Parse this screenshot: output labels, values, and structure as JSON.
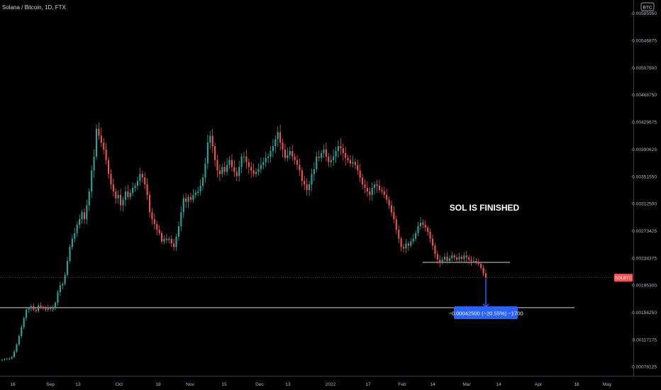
{
  "header": {
    "title": "Solana / Bitcoin, 1D, FTX"
  },
  "currency_badge": "BTC",
  "symbol_badge": "SOLBTC",
  "annotation": "SOL IS FINISHED",
  "measure_label": "−0.00042500 (−20.55%) −1700",
  "colors": {
    "background": "#000000",
    "up": "#26a69a",
    "down": "#ef5350",
    "price_line": "#ef5350",
    "measure": "#2962ff",
    "axis_text": "#b2b5be"
  },
  "chart_data": {
    "type": "candlestick",
    "title": "Solana / Bitcoin, 1D, FTX",
    "y_ticks": [
      "0.00585950",
      "0.00546875",
      "0.00507800",
      "0.00468750",
      "0.00429675",
      "0.00390625",
      "0.00351550",
      "0.00312500",
      "0.00273425",
      "0.00234375",
      "0.00195300",
      "0.00156250",
      "0.00117175",
      "0.00078125"
    ],
    "x_ticks": [
      "16",
      "Sep",
      "13",
      "Oct",
      "18",
      "Nov",
      "15",
      "Dec",
      "13",
      "2022",
      "17",
      "Feb",
      "14",
      "Mar",
      "14",
      "Apr",
      "18",
      "May"
    ],
    "ylim": [
      0.00065,
      0.00605
    ],
    "last_price": 0.00206,
    "support_level": 0.00228,
    "target_level": 0.00163,
    "measure": {
      "from": 0.00206,
      "to": 0.00163,
      "change": "−0.00042500",
      "percent": "−20.55%",
      "ticks": "−1700"
    },
    "close_series": [
      0.00088,
      0.00089,
      0.00089,
      0.0009,
      0.00092,
      0.001,
      0.0011,
      0.00122,
      0.00135,
      0.00148,
      0.0016,
      0.00162,
      0.00165,
      0.0016,
      0.00158,
      0.00166,
      0.00164,
      0.00162,
      0.0016,
      0.00163,
      0.00161,
      0.00163,
      0.0017,
      0.00185,
      0.00195,
      0.00197,
      0.0021,
      0.0023,
      0.0025,
      0.00262,
      0.0027,
      0.00282,
      0.0029,
      0.003,
      0.0029,
      0.0031,
      0.0033,
      0.0036,
      0.0038,
      0.0042,
      0.0041,
      0.004,
      0.0039,
      0.00375,
      0.00355,
      0.0034,
      0.0033,
      0.0032,
      0.00325,
      0.0031,
      0.00318,
      0.0033,
      0.00322,
      0.00328,
      0.00335,
      0.00338,
      0.00345,
      0.00355,
      0.0035,
      0.0034,
      0.00325,
      0.003,
      0.0029,
      0.00283,
      0.00275,
      0.0027,
      0.00258,
      0.00262,
      0.0026,
      0.00262,
      0.00255,
      0.0025,
      0.00265,
      0.0028,
      0.003,
      0.0032,
      0.00315,
      0.00322,
      0.00318,
      0.00325,
      0.00328,
      0.0033,
      0.00338,
      0.0035,
      0.0037,
      0.004,
      0.0041,
      0.00395,
      0.00375,
      0.0036,
      0.00355,
      0.00365,
      0.00358,
      0.00368,
      0.00375,
      0.00365,
      0.00358,
      0.00352,
      0.00365,
      0.0038,
      0.0038,
      0.00372,
      0.00365,
      0.0036,
      0.00355,
      0.00358,
      0.00362,
      0.00368,
      0.00372,
      0.00378,
      0.0038,
      0.00388,
      0.00395,
      0.00405,
      0.00415,
      0.004,
      0.0039,
      0.00378,
      0.00382,
      0.00388,
      0.0038,
      0.00375,
      0.00368,
      0.0036,
      0.00345,
      0.0034,
      0.00332,
      0.0034,
      0.00355,
      0.00362,
      0.0038,
      0.00378,
      0.00385,
      0.0039,
      0.0038,
      0.00372,
      0.00375,
      0.0038,
      0.00388,
      0.00395,
      0.00392,
      0.00385,
      0.00378,
      0.00375,
      0.0037,
      0.00372,
      0.00368,
      0.0036,
      0.0035,
      0.0034,
      0.00335,
      0.0033,
      0.00325,
      0.00335,
      0.0034,
      0.00338,
      0.00332,
      0.0033,
      0.00325,
      0.00318,
      0.0031,
      0.003,
      0.0029,
      0.00275,
      0.00262,
      0.0025,
      0.00248,
      0.00255,
      0.00252,
      0.00258,
      0.00262,
      0.0027,
      0.0028,
      0.00285,
      0.00282,
      0.00278,
      0.00272,
      0.00262,
      0.00252,
      0.0024,
      0.00232,
      0.00228,
      0.00232,
      0.00236,
      0.0023,
      0.00234,
      0.00238,
      0.00235,
      0.00232,
      0.00236,
      0.00233,
      0.00238,
      0.00235,
      0.00232,
      0.0023,
      0.0023,
      0.00228,
      0.00226,
      0.0022,
      0.00212,
      0.00206
    ]
  }
}
